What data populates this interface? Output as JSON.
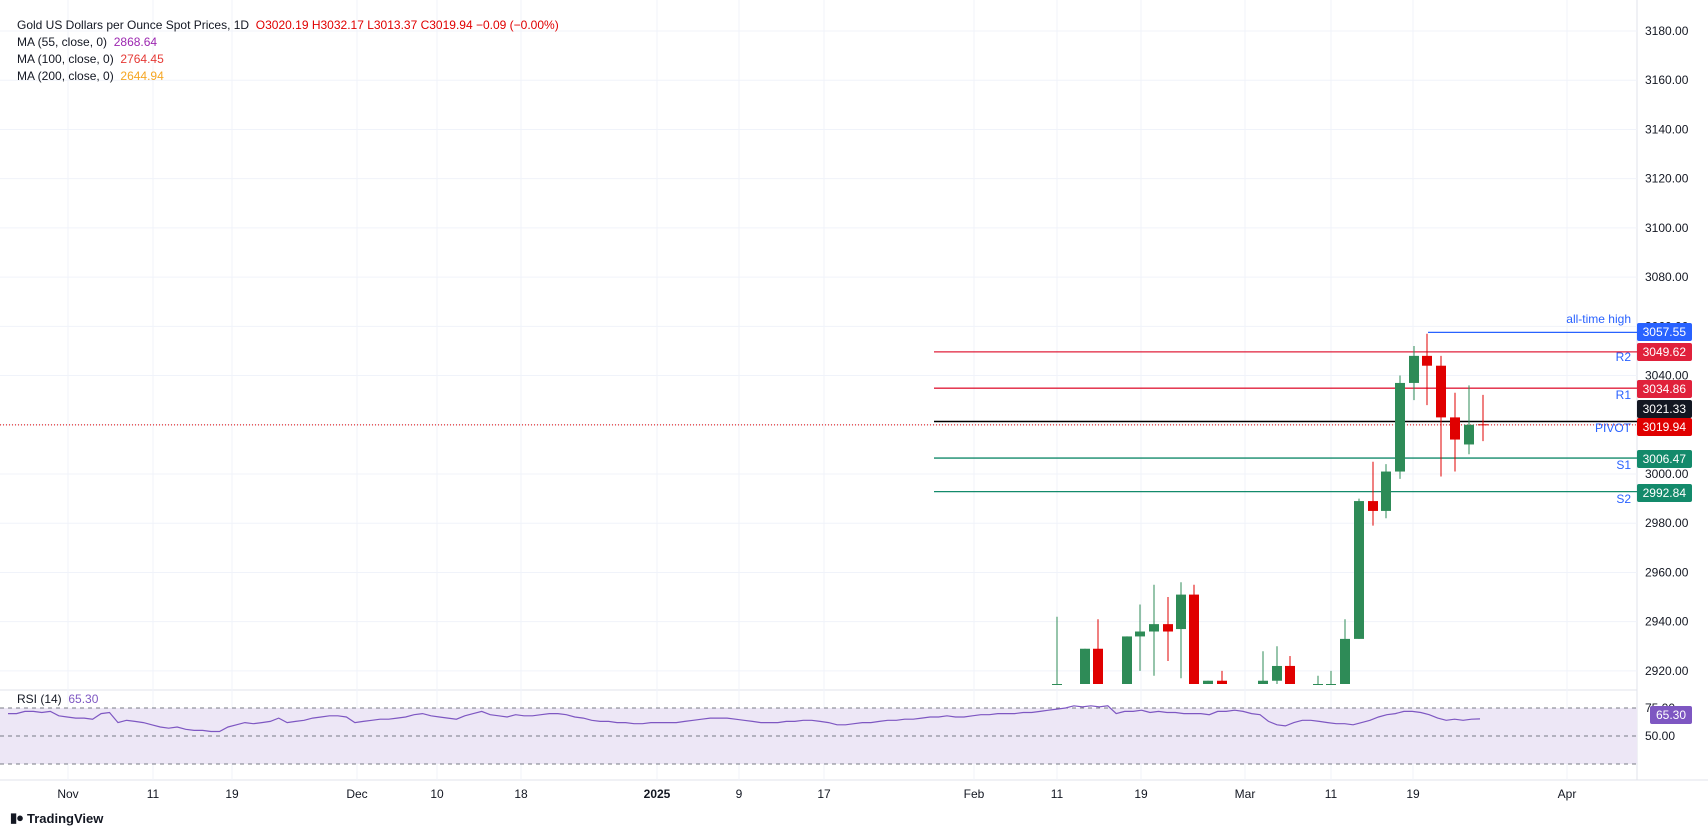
{
  "legend": {
    "title": "Gold US Dollars per Ounce Spot Prices, 1D",
    "ohlc": "O3020.19  H3032.17  L3013.37  C3019.94  −0.09  (−0.00%)",
    "ma55_label": "MA (55, close, 0)",
    "ma55_value": "2868.64",
    "ma100_label": "MA (100, close, 0)",
    "ma100_value": "2764.45",
    "ma200_label": "MA (200, close, 0)",
    "ma200_value": "2644.94"
  },
  "colors": {
    "up": "#2e8b57",
    "down": "#e00000",
    "ma55": "#9c27b0",
    "ma100": "#e53935",
    "ma200": "#f5a623",
    "pivot": "#000000",
    "resistance": "#e0213b",
    "support": "#138a6b",
    "ath": "#2962ff",
    "rsi": "#7e57c2",
    "rsi_band": "#ede7f6"
  },
  "rsi": {
    "label": "RSI (14)",
    "value": "65.30",
    "levels": [
      "75.00",
      "50.00"
    ]
  },
  "brand": "TradingView",
  "price_tags": {
    "ath": "3057.55",
    "r2": "3049.62",
    "r1": "3034.86",
    "pivot": "3021.33",
    "last": "3019.94",
    "s1": "3006.47",
    "s2": "2992.84"
  },
  "level_labels": {
    "ath": "all-time high",
    "r2": "R2",
    "r1": "R1",
    "pivot": "PIVOT",
    "s1": "S1",
    "s2": "S2"
  },
  "chart_data": {
    "type": "candlestick",
    "title": "Gold US Dollars per Ounce Spot Prices, 1D",
    "y_axis": {
      "ticks": [
        "3180.00",
        "3160.00",
        "3140.00",
        "3120.00",
        "3100.00",
        "3080.00",
        "3060.00",
        "3040.00",
        "3020.00",
        "3000.00",
        "2980.00",
        "2960.00",
        "2940.00",
        "2920.00"
      ],
      "range": [
        2914,
        3187
      ]
    },
    "x_axis": {
      "ticks": [
        "Nov",
        "11",
        "19",
        "Dec",
        "10",
        "18",
        "2025",
        "9",
        "17",
        "Feb",
        "11",
        "19",
        "Mar",
        "11",
        "19",
        "Apr"
      ],
      "bold_ticks": [
        "2025"
      ]
    },
    "candles": [
      {
        "d": "Feb 10",
        "o": 2914,
        "h": 2942,
        "l": 2914,
        "c": 2914
      },
      {
        "d": "Feb 13",
        "o": 2914,
        "h": 2929,
        "l": 2914,
        "c": 2929
      },
      {
        "d": "Feb 14",
        "o": 2929,
        "h": 2941,
        "l": 2914,
        "c": 2914
      },
      {
        "d": "Feb 17",
        "o": 2914,
        "h": 2934,
        "l": 2914,
        "c": 2934
      },
      {
        "d": "Feb 18",
        "o": 2934,
        "h": 2947,
        "l": 2920,
        "c": 2936
      },
      {
        "d": "Feb 19",
        "o": 2936,
        "h": 2955,
        "l": 2918,
        "c": 2939
      },
      {
        "d": "Feb 20",
        "o": 2939,
        "h": 2950,
        "l": 2924,
        "c": 2936
      },
      {
        "d": "Feb 21",
        "o": 2937,
        "h": 2956,
        "l": 2917,
        "c": 2951
      },
      {
        "d": "Feb 24",
        "o": 2951,
        "h": 2955,
        "l": 2914,
        "c": 2914
      },
      {
        "d": "Feb 25",
        "o": 2914,
        "h": 2916,
        "l": 2914,
        "c": 2916
      },
      {
        "d": "Feb 26",
        "o": 2916,
        "h": 2920,
        "l": 2914,
        "c": 2914
      },
      {
        "d": "Mar 3",
        "o": 2914,
        "h": 2928,
        "l": 2914,
        "c": 2916
      },
      {
        "d": "Mar 4",
        "o": 2916,
        "h": 2930,
        "l": 2914,
        "c": 2922
      },
      {
        "d": "Mar 5",
        "o": 2922,
        "h": 2926,
        "l": 2914,
        "c": 2918
      },
      {
        "d": "Mar 6",
        "o": 2922,
        "h": 2926,
        "l": 2914,
        "c": 2914
      },
      {
        "d": "Mar 7",
        "o": 2914,
        "h": 2918,
        "l": 2914,
        "c": 2914
      },
      {
        "d": "Mar 10",
        "o": 2914,
        "h": 2920,
        "l": 2914,
        "c": 2914
      },
      {
        "d": "Mar 11",
        "o": 2914,
        "h": 2941,
        "l": 2914,
        "c": 2933
      },
      {
        "d": "Mar 12",
        "o": 2933,
        "h": 2990,
        "l": 2933,
        "c": 2989
      },
      {
        "d": "Mar 13",
        "o": 2989,
        "h": 3005,
        "l": 2979,
        "c": 2985
      },
      {
        "d": "Mar 14",
        "o": 2985,
        "h": 3004,
        "l": 2982,
        "c": 3001
      },
      {
        "d": "Mar 17",
        "o": 3001,
        "h": 3040,
        "l": 2998,
        "c": 3037
      },
      {
        "d": "Mar 18",
        "o": 3037,
        "h": 3052,
        "l": 3030,
        "c": 3048
      },
      {
        "d": "Mar 19",
        "o": 3048,
        "h": 3057,
        "l": 3028,
        "c": 3044
      },
      {
        "d": "Mar 20",
        "o": 3044,
        "h": 3048,
        "l": 2999,
        "c": 3023
      },
      {
        "d": "Mar 21",
        "o": 3023,
        "h": 3033,
        "l": 3001,
        "c": 3014
      },
      {
        "d": "Mar 24",
        "o": 3012,
        "h": 3036,
        "l": 3008,
        "c": 3020
      },
      {
        "d": "Mar 25",
        "o": 3020.19,
        "h": 3032.17,
        "l": 3013.37,
        "c": 3019.94
      }
    ],
    "levels": [
      {
        "name": "all-time high",
        "value": 3057.55
      },
      {
        "name": "R2",
        "value": 3049.62
      },
      {
        "name": "R1",
        "value": 3034.86
      },
      {
        "name": "PIVOT",
        "value": 3021.33
      },
      {
        "name": "S1",
        "value": 3006.47
      },
      {
        "name": "S2",
        "value": 2992.84
      }
    ],
    "last_price": 3019.94,
    "rsi_series": [
      70,
      70,
      72,
      72,
      71,
      72,
      68,
      67,
      66,
      66,
      65,
      70,
      71,
      62,
      64,
      63,
      62,
      60,
      58,
      57,
      58,
      56,
      55,
      55,
      54,
      54,
      58,
      60,
      62,
      61,
      62,
      63,
      66,
      62,
      63,
      64,
      66,
      67,
      68,
      68,
      67,
      62,
      63,
      64,
      65,
      65,
      66,
      67,
      69,
      70,
      68,
      67,
      66,
      65,
      68,
      70,
      72,
      69,
      68,
      67,
      69,
      68,
      68,
      69,
      70,
      70,
      69,
      67,
      66,
      64,
      63,
      63,
      62,
      62,
      61,
      61,
      62,
      62,
      62,
      62,
      63,
      64,
      65,
      66,
      66,
      66,
      65,
      64,
      63,
      62,
      62,
      62,
      63,
      63,
      64,
      64,
      63,
      62,
      60,
      60,
      61,
      62,
      62,
      63,
      64,
      64,
      65,
      65,
      66,
      67,
      67,
      68,
      67,
      67,
      68,
      69,
      69,
      70,
      70,
      70,
      71,
      71,
      72,
      73,
      74,
      75,
      77,
      76,
      77,
      76,
      77,
      70,
      72,
      72,
      73,
      71,
      72,
      71,
      71,
      70,
      70,
      70,
      69,
      72,
      72,
      73,
      72,
      70,
      69,
      63,
      60,
      59,
      62,
      64,
      64,
      63,
      62,
      61,
      61,
      60,
      62,
      64,
      67,
      69,
      70,
      72,
      72,
      71,
      69,
      66,
      64,
      65,
      64,
      65,
      65.3
    ],
    "rsi_value": 65.3
  }
}
